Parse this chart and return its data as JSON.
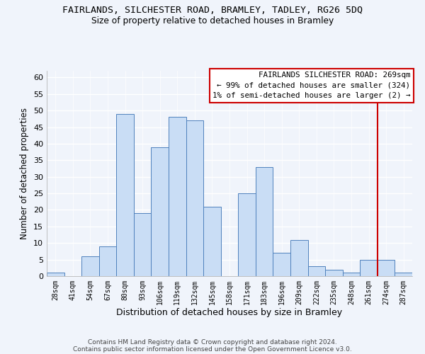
{
  "title": "FAIRLANDS, SILCHESTER ROAD, BRAMLEY, TADLEY, RG26 5DQ",
  "subtitle": "Size of property relative to detached houses in Bramley",
  "xlabel": "Distribution of detached houses by size in Bramley",
  "ylabel": "Number of detached properties",
  "bar_labels": [
    "28sqm",
    "41sqm",
    "54sqm",
    "67sqm",
    "80sqm",
    "93sqm",
    "106sqm",
    "119sqm",
    "132sqm",
    "145sqm",
    "158sqm",
    "171sqm",
    "183sqm",
    "196sqm",
    "209sqm",
    "222sqm",
    "235sqm",
    "248sqm",
    "261sqm",
    "274sqm",
    "287sqm"
  ],
  "bar_values": [
    1,
    0,
    6,
    9,
    49,
    19,
    39,
    48,
    47,
    21,
    0,
    25,
    33,
    7,
    11,
    3,
    2,
    1,
    5,
    5,
    1
  ],
  "bar_color": "#c9ddf5",
  "bar_edge_color": "#4f81bd",
  "ylim": [
    0,
    62
  ],
  "yticks": [
    0,
    5,
    10,
    15,
    20,
    25,
    30,
    35,
    40,
    45,
    50,
    55,
    60
  ],
  "vline_color": "#cc0000",
  "annotation_title": "FAIRLANDS SILCHESTER ROAD: 269sqm",
  "annotation_line1": "← 99% of detached houses are smaller (324)",
  "annotation_line2": "1% of semi-detached houses are larger (2) →",
  "annotation_box_edge": "#cc0000",
  "footer1": "Contains HM Land Registry data © Crown copyright and database right 2024.",
  "footer2": "Contains public sector information licensed under the Open Government Licence v3.0.",
  "bg_color": "#f0f4fb",
  "grid_color": "#ffffff"
}
